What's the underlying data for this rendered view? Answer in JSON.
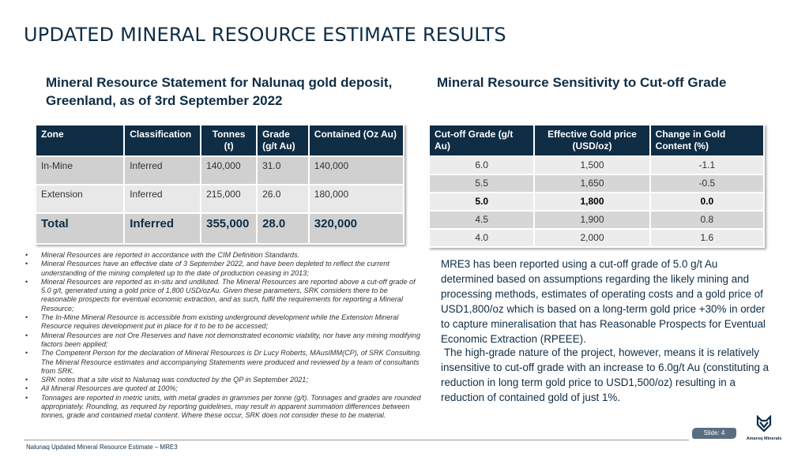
{
  "title": "UPDATED MINERAL RESOURCE ESTIMATE RESULTS",
  "left": {
    "subtitle": "Mineral Resource Statement for Nalunaq gold deposit, Greenland, as of 3rd September 2022",
    "headers": [
      "Zone",
      "Classification",
      "Tonnes (t)",
      "Grade (g/t Au)",
      "Contained (Oz Au)"
    ],
    "rows": [
      [
        "In-Mine",
        "Inferred",
        "140,000",
        "31.0",
        "140,000"
      ],
      [
        "Extension",
        "Inferred",
        "215,000",
        "26.0",
        "180,000"
      ]
    ],
    "total": [
      "Total",
      "Inferred",
      "355,000",
      "28.0",
      "320,000"
    ],
    "notes": [
      "Mineral Resources are reported in accordance with the CIM Definition Standards.",
      "Mineral Resources have an effective date of 3 September 2022, and have been depleted to reflect the current understanding of the mining completed up to the date of production ceasing in 2013;",
      "Mineral Resources are reported as in-situ and undiluted. The Mineral Resources are reported above a cut-off grade of 5.0 g/t, generated using a gold price of 1,800 USD/ozAu. Given these parameters, SRK considers there to be reasonable prospects for eventual economic extraction, and as such, fulfil the requirements for reporting a Mineral Resource;",
      "The In-Mine Mineral Resource is accessible from existing underground development while the Extension Mineral Resource requires development put in place for it to be to be accessed;",
      "Mineral Resources are not Ore Reserves and have not demonstrated economic viability,  nor have any mining modifying factors been applied;",
      "The Competent Person for the declaration of Mineral Resources is Dr Lucy Roberts, MAusIMM(CP), of SRK Consulting. The Mineral Resource estimates and accompanying Statements were produced and reviewed by a team of consultants from SRK.",
      "SRK notes that a site visit to Nalunaq was conducted by the QP in September 2021;",
      "All Mineral Resources are quoted at 100%;",
      "Tonnages are reported in metric units, with metal grades in grammes per tonne (g/t). Tonnages and grades are rounded appropriately. Rounding, as required by reporting guidelines, may result in apparent summation differences between tonnes, grade and contained metal content. Where these occur, SRK does not consider these to be material."
    ]
  },
  "right": {
    "subtitle": "Mineral Resource Sensitivity to Cut-off Grade",
    "headers": [
      "Cut-off Grade (g/t Au)",
      "Effective Gold price (USD/oz)",
      "Change in Gold Content (%)"
    ],
    "rows": [
      [
        "6.0",
        "1,500",
        "-1.1"
      ],
      [
        "5.5",
        "1,650",
        "-0.5"
      ],
      [
        "5.0",
        "1,800",
        "0.0"
      ],
      [
        "4.5",
        "1,900",
        "0.8"
      ],
      [
        "4.0",
        "2,000",
        "1.6"
      ]
    ],
    "para1": "MRE3 has been reported using a cut-off grade of 5.0 g/t Au determined based on assumptions regarding the likely mining and processing methods, estimates of operating costs and a gold price of USD1,800/oz which is based on a long-term gold price +30% in order to capture mineralisation that has Reasonable Prospects for Eventual Economic Extraction (RPEEE).",
    "para2": "The high-grade nature of the project, however, means it is relatively insensitive to cut-off grade with an increase to 6.0g/t Au (constituting a reduction in long term gold price to USD1,500/oz) resulting in a reduction of contained gold of just 1%."
  },
  "footer": {
    "text": "Nalunaq Updated Mineral Resource Estimate – MRE3",
    "slide": "Slide: 4",
    "logo": "Amaroq Minerals"
  }
}
